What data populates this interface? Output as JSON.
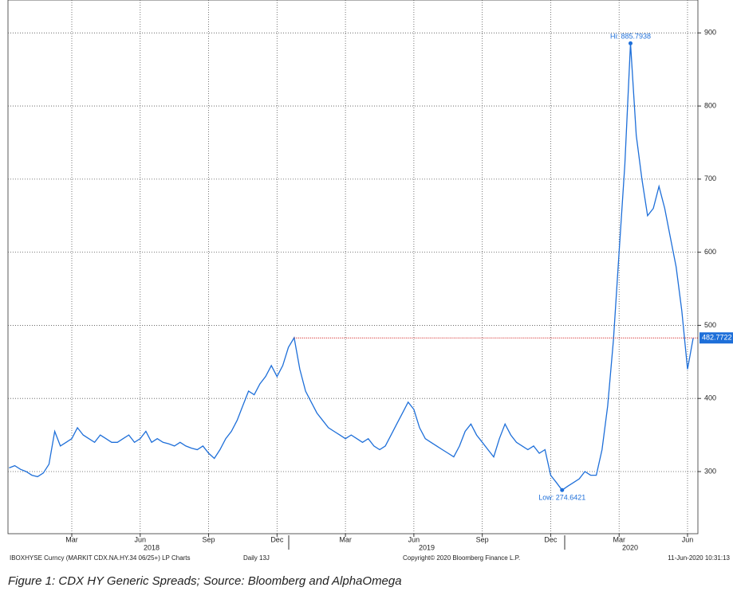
{
  "chart_data": {
    "type": "line",
    "categories": [
      null,
      null,
      null,
      null,
      null,
      null,
      null,
      null,
      null,
      null,
      null,
      "Mar",
      null,
      null,
      null,
      null,
      null,
      null,
      null,
      null,
      null,
      null,
      null,
      "Jun",
      null,
      null,
      null,
      null,
      null,
      null,
      null,
      null,
      null,
      null,
      null,
      "Sep",
      null,
      null,
      null,
      null,
      null,
      null,
      null,
      null,
      null,
      null,
      null,
      "Dec",
      null,
      null,
      null,
      null,
      null,
      null,
      null,
      null,
      null,
      null,
      null,
      "Mar",
      null,
      null,
      null,
      null,
      null,
      null,
      null,
      null,
      null,
      null,
      null,
      "Jun",
      null,
      null,
      null,
      null,
      null,
      null,
      null,
      null,
      null,
      null,
      null,
      "Sep",
      null,
      null,
      null,
      null,
      null,
      null,
      null,
      null,
      null,
      null,
      null,
      "Dec",
      null,
      null,
      null,
      null,
      null,
      null,
      null,
      null,
      null,
      null,
      null,
      "Mar",
      null,
      null,
      null,
      null,
      null,
      null,
      null,
      null,
      null,
      null,
      null,
      "Jun",
      null
    ],
    "years": [
      "2018",
      "2019",
      "2020"
    ],
    "series": [
      {
        "name": "IBOXHYSE Curncy",
        "color": "#1e6fd9",
        "values": [
          305,
          308,
          303,
          300,
          295,
          293,
          298,
          310,
          355,
          335,
          340,
          345,
          360,
          350,
          345,
          340,
          350,
          345,
          340,
          340,
          345,
          350,
          340,
          345,
          355,
          340,
          345,
          340,
          338,
          335,
          340,
          335,
          332,
          330,
          335,
          325,
          318,
          330,
          345,
          355,
          370,
          390,
          410,
          405,
          420,
          430,
          445,
          430,
          445,
          470,
          483,
          440,
          410,
          395,
          380,
          370,
          360,
          355,
          350,
          345,
          350,
          345,
          340,
          345,
          335,
          330,
          335,
          350,
          365,
          380,
          395,
          385,
          360,
          345,
          340,
          335,
          330,
          325,
          320,
          335,
          355,
          365,
          350,
          340,
          330,
          320,
          345,
          365,
          350,
          340,
          335,
          330,
          335,
          325,
          330,
          295,
          285,
          274.6421,
          280,
          285,
          290,
          300,
          295,
          295,
          330,
          390,
          480,
          600,
          720,
          885.7938,
          760,
          700,
          650,
          660,
          690,
          660,
          620,
          580,
          520,
          440,
          482.7722
        ]
      }
    ],
    "ylim": [
      215,
      945
    ],
    "yticks": [
      300,
      400,
      500,
      600,
      700,
      800,
      900
    ],
    "grid": true,
    "high_label": "Hi: 885.7938",
    "low_label": "Low: 274.6421",
    "last_value": 482.7722,
    "footer": [
      "IBOXHYSE Curncy (MARKIT CDX.NA.HY.34 06/25+) LP Charts",
      "Daily 13J",
      "Copyright© 2020 Bloomberg Finance L.P.",
      "11-Jun-2020 10:31:13"
    ],
    "caption": "Figure 1: CDX HY Generic Spreads; Source: Bloomberg and AlphaOmega"
  }
}
